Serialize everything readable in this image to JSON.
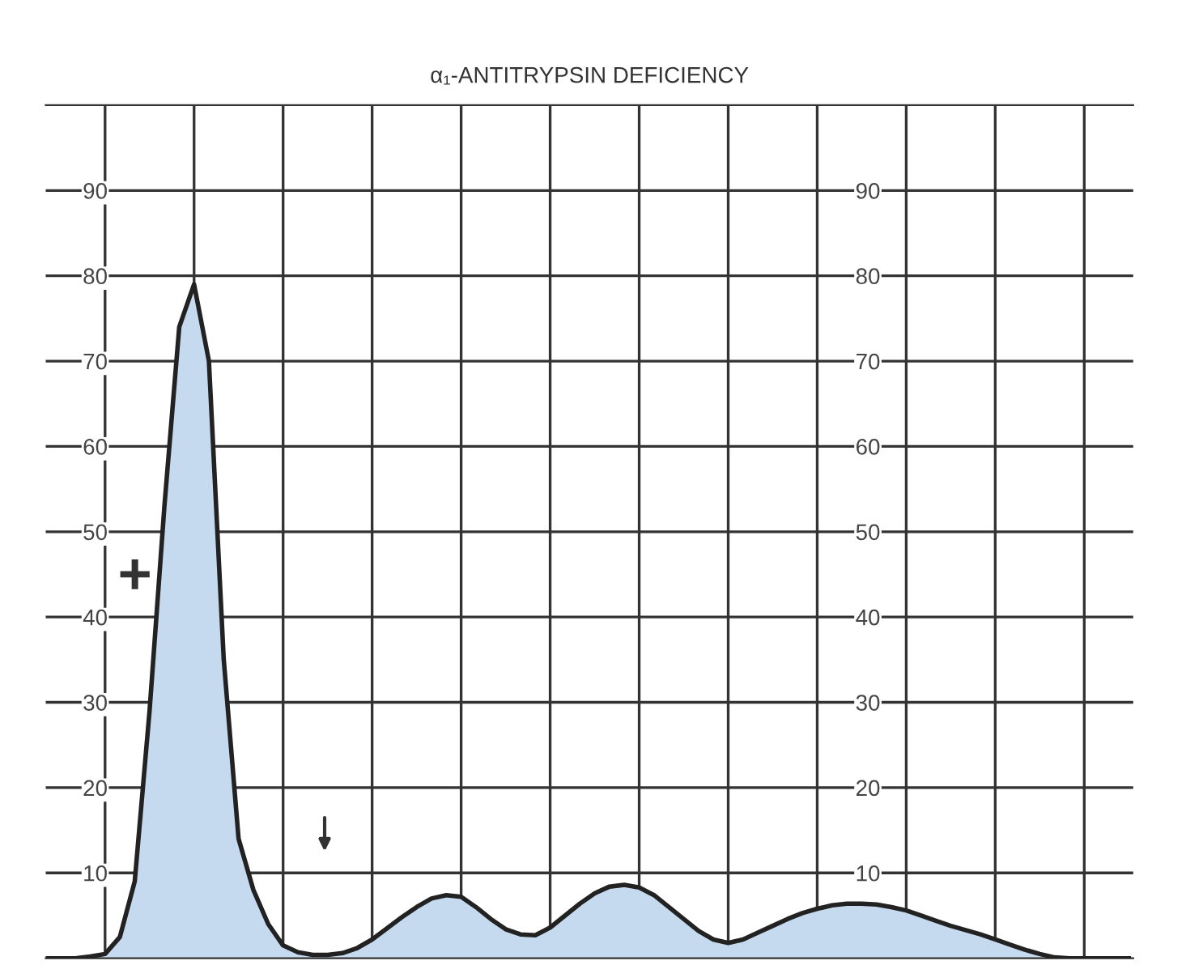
{
  "chart_data": {
    "type": "area",
    "title": "α₁-ANTITRYPSIN DEFICIENCY",
    "categories": [
      null,
      null,
      null,
      null,
      null,
      null,
      null,
      null,
      null,
      null,
      null,
      null,
      null,
      null,
      null,
      null,
      null,
      null,
      null,
      null,
      null,
      null,
      null,
      null,
      null,
      null,
      null,
      null,
      null,
      null,
      null,
      null,
      null,
      null,
      null,
      null,
      null,
      null,
      null,
      null,
      null,
      null,
      null,
      null,
      null,
      null,
      null,
      null,
      null,
      null,
      null,
      null,
      null,
      null,
      null,
      null,
      null,
      null,
      null,
      null,
      null,
      null,
      null,
      null,
      null,
      null,
      null,
      null,
      null,
      null,
      null,
      null,
      null,
      null
    ],
    "series": [
      {
        "color": "#c6daef",
        "values": [
          0,
          0,
          0,
          0.2,
          0.5,
          2.5,
          9,
          29,
          53,
          74,
          79,
          70,
          35,
          14,
          8,
          4,
          1.5,
          0.7,
          0.4,
          0.4,
          0.6,
          1.2,
          2.2,
          3.5,
          4.8,
          6,
          7,
          7.4,
          7.2,
          6,
          4.6,
          3.4,
          2.8,
          2.7,
          3.6,
          5,
          6.4,
          7.6,
          8.4,
          8.6,
          8.3,
          7.4,
          6,
          4.6,
          3.2,
          2.2,
          1.8,
          2.2,
          3,
          3.8,
          4.6,
          5.3,
          5.8,
          6.2,
          6.4,
          6.4,
          6.3,
          6,
          5.6,
          5,
          4.4,
          3.8,
          3.3,
          2.8,
          2.2,
          1.6,
          1,
          0.5,
          0.1,
          0,
          0,
          0,
          0,
          0
        ]
      }
    ],
    "ylim": [
      0,
      100
    ],
    "yticks": [
      10,
      20,
      30,
      40,
      50,
      60,
      70,
      80,
      90
    ],
    "y2lim": [
      0,
      100
    ],
    "y2ticks": [
      10,
      20,
      30,
      40,
      50,
      60,
      70,
      80,
      90
    ],
    "grid": true,
    "annotations": [
      "+"
    ]
  }
}
